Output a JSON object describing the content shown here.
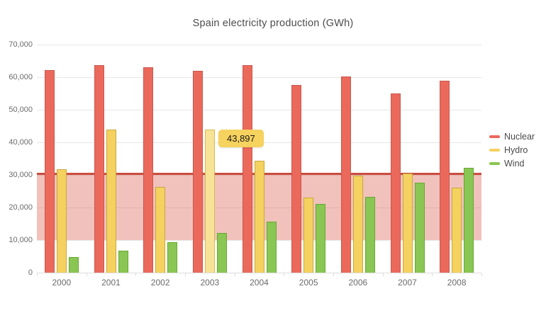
{
  "chart_data": {
    "type": "bar",
    "title": "Spain electricity production (GWh)",
    "categories": [
      "2000",
      "2001",
      "2002",
      "2003",
      "2004",
      "2005",
      "2006",
      "2007",
      "2008"
    ],
    "series": [
      {
        "name": "Nuclear",
        "color": "#eb695b",
        "border_color": "#c9584e",
        "values": [
          62206,
          63708,
          63016,
          61875,
          63606,
          57539,
          60126,
          55103,
          58973
        ]
      },
      {
        "name": "Hydro",
        "color": "#f5d15f",
        "border_color": "#c7a83d",
        "values": [
          31807,
          43864,
          26270,
          43897,
          34439,
          23025,
          29831,
          30522,
          26112
        ]
      },
      {
        "name": "Wind",
        "color": "#8ac653",
        "border_color": "#67a832",
        "values": [
          4727,
          6759,
          9342,
          12075,
          15700,
          21176,
          23297,
          27568,
          32203
        ]
      }
    ],
    "xlabel": "",
    "ylabel": "",
    "ylim": [
      0,
      70000
    ],
    "y_tick_interval": 10000,
    "y_tick_labels": [
      "0",
      "10,000",
      "20,000",
      "30,000",
      "40,000",
      "50,000",
      "60,000",
      "70,000"
    ],
    "grid": "horizontal",
    "legend_position": "right",
    "plot_band": {
      "from": 10000,
      "to": 30000,
      "color": "rgba(217,94,78,0.38)"
    },
    "plot_line": {
      "value": 30300,
      "width": 3,
      "color": "#c94e41"
    },
    "highlight": {
      "series": "Hydro",
      "category": "2003",
      "color": "#f8e295",
      "border_color": "#d6b954"
    },
    "tooltip": {
      "text": "43,897",
      "series": "Hydro",
      "category": "2003"
    }
  },
  "legend": {
    "items": [
      {
        "label": "Nuclear",
        "color": "#eb695b"
      },
      {
        "label": "Hydro",
        "color": "#f5d15f"
      },
      {
        "label": "Wind",
        "color": "#8ac653"
      }
    ]
  }
}
